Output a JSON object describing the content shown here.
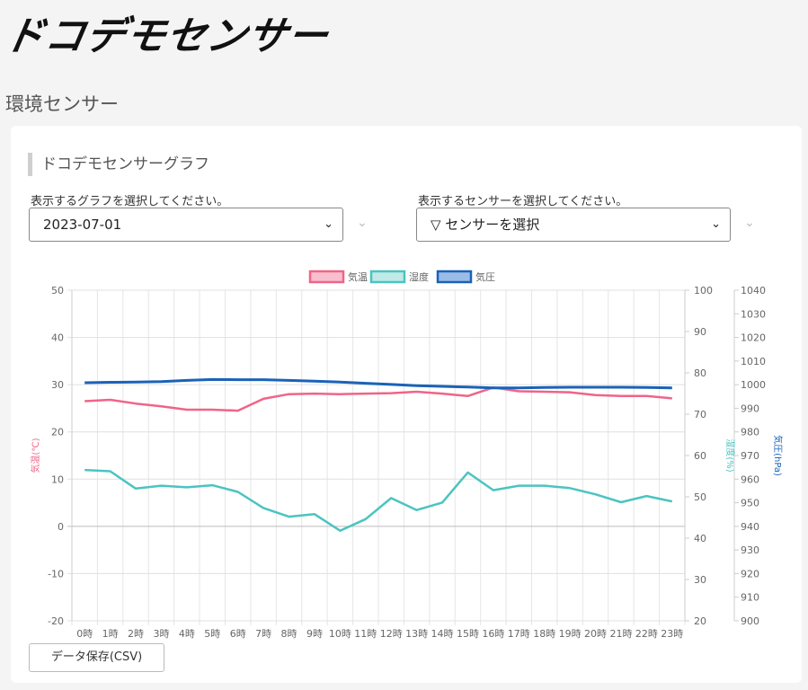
{
  "brand": {
    "logo_text": "ドコデモセンサー"
  },
  "page": {
    "title": "環境センサー"
  },
  "card": {
    "section_title": "ドコデモセンサーグラフ",
    "graph_select": {
      "label": "表示するグラフを選択してください。",
      "value": "2023-07-01"
    },
    "sensor_select": {
      "label": "表示するセンサーを選択してください。",
      "value": "▽ センサーを選択"
    },
    "csv_button": "データ保存(CSV)"
  },
  "colors": {
    "temperature": "#f06488",
    "humidity": "#4bc4c0",
    "pressure": "#1a62b8",
    "temperature_fill": "#f8c0cf",
    "humidity_fill": "#c0e9e7",
    "pressure_fill": "#9bbce6"
  },
  "chart_data": {
    "type": "line",
    "categories": [
      "0時",
      "1時",
      "2時",
      "3時",
      "4時",
      "5時",
      "6時",
      "7時",
      "8時",
      "9時",
      "10時",
      "11時",
      "12時",
      "13時",
      "14時",
      "15時",
      "16時",
      "17時",
      "18時",
      "19時",
      "20時",
      "21時",
      "22時",
      "23時"
    ],
    "series": [
      {
        "name": "気温",
        "axis": "left",
        "values": [
          26.5,
          26.8,
          26.0,
          25.4,
          24.7,
          24.7,
          24.5,
          27.0,
          28.0,
          28.1,
          28.0,
          28.1,
          28.2,
          28.5,
          28.1,
          27.6,
          29.4,
          28.6,
          28.5,
          28.4,
          27.8,
          27.6,
          27.6,
          27.1
        ]
      },
      {
        "name": "湿度",
        "axis": "right1",
        "values": [
          56.5,
          56.2,
          52.0,
          52.7,
          52.3,
          52.8,
          51.2,
          47.3,
          45.2,
          45.8,
          41.8,
          44.6,
          49.7,
          46.8,
          48.6,
          55.9,
          51.6,
          52.7,
          52.7,
          52.1,
          50.6,
          48.7,
          50.2,
          48.9
        ]
      },
      {
        "name": "気圧",
        "axis": "right2",
        "values": [
          1000.8,
          1001.0,
          1001.1,
          1001.3,
          1001.8,
          1002.2,
          1002.1,
          1002.1,
          1001.8,
          1001.5,
          1001.1,
          1000.6,
          1000.1,
          999.6,
          999.3,
          999.0,
          998.6,
          998.6,
          998.8,
          998.9,
          998.9,
          998.9,
          998.8,
          998.6
        ]
      }
    ],
    "axes": {
      "left": {
        "label": "気温(℃)",
        "min": -20,
        "max": 50,
        "ticks": [
          "50",
          "40",
          "30",
          "20",
          "10",
          "0",
          "-10",
          "-20"
        ]
      },
      "right1": {
        "label": "湿度(%)",
        "min": 20,
        "max": 100,
        "ticks": [
          "100",
          "90",
          "80",
          "70",
          "60",
          "50",
          "40",
          "30",
          "20"
        ]
      },
      "right2": {
        "label": "気圧(hPa)",
        "min": 900,
        "max": 1040,
        "ticks": [
          "1040",
          "1030",
          "1020",
          "1010",
          "1000",
          "990",
          "980",
          "970",
          "960",
          "950",
          "940",
          "930",
          "920",
          "910",
          "900"
        ]
      }
    },
    "legend": [
      "気温",
      "湿度",
      "気圧"
    ],
    "legend_position": "top",
    "grid": true
  }
}
